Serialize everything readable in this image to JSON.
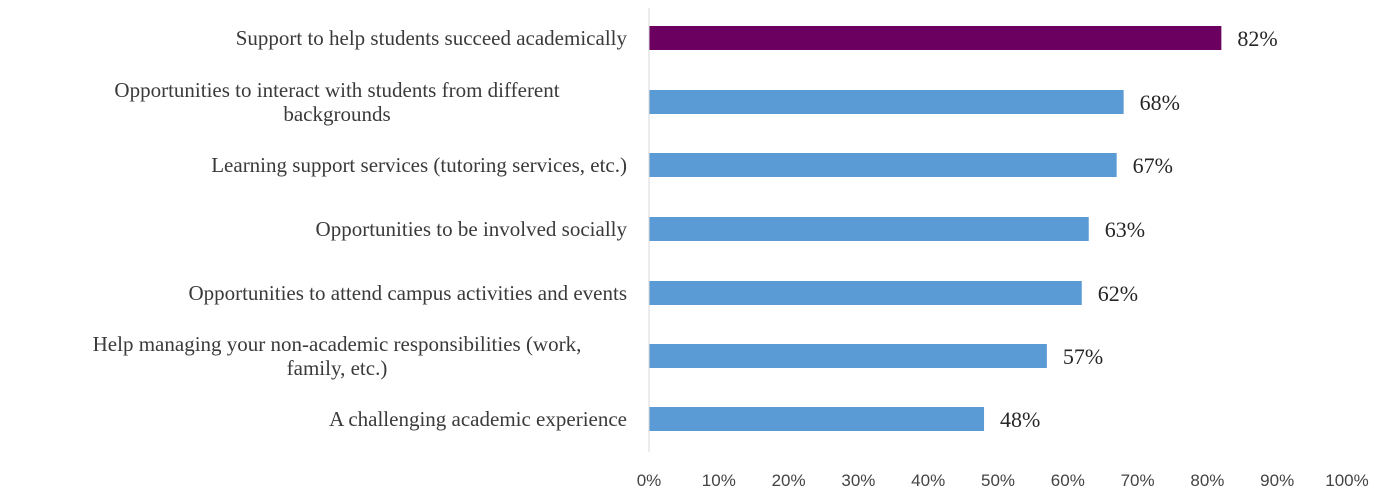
{
  "chart_data": {
    "type": "bar",
    "orientation": "horizontal",
    "title": "",
    "xlabel": "",
    "ylabel": "",
    "xlim": [
      0,
      100
    ],
    "grid": false,
    "legend": "none",
    "categories": [
      "Support to help students succeed academically",
      "Opportunities to interact with students from different backgrounds",
      "Learning support services (tutoring services, etc.)",
      "Opportunities to be involved socially",
      "Opportunities to attend campus activities and events",
      "Help managing your non-academic responsibilities (work, family, etc.)",
      "A challenging academic experience"
    ],
    "category_lines": [
      [
        "Support to help students succeed academically"
      ],
      [
        "Opportunities to interact with students from different",
        "backgrounds"
      ],
      [
        "Learning support services (tutoring services, etc.)"
      ],
      [
        "Opportunities to be involved socially"
      ],
      [
        "Opportunities to attend campus activities and events"
      ],
      [
        "Help managing your non-academic responsibilities (work,",
        "family, etc.)"
      ],
      [
        "A challenging academic experience"
      ]
    ],
    "values": [
      82,
      68,
      67,
      63,
      62,
      57,
      48
    ],
    "value_labels": [
      "82%",
      "68%",
      "67%",
      "63%",
      "62%",
      "57%",
      "48%"
    ],
    "x_ticks": [
      "0%",
      "10%",
      "20%",
      "30%",
      "40%",
      "50%",
      "60%",
      "70%",
      "80%",
      "90%",
      "100%"
    ],
    "colors": {
      "highlight": "#6b0060",
      "default": "#5b9bd5",
      "axis": "#d9d9d9"
    },
    "highlight_index": 0
  }
}
